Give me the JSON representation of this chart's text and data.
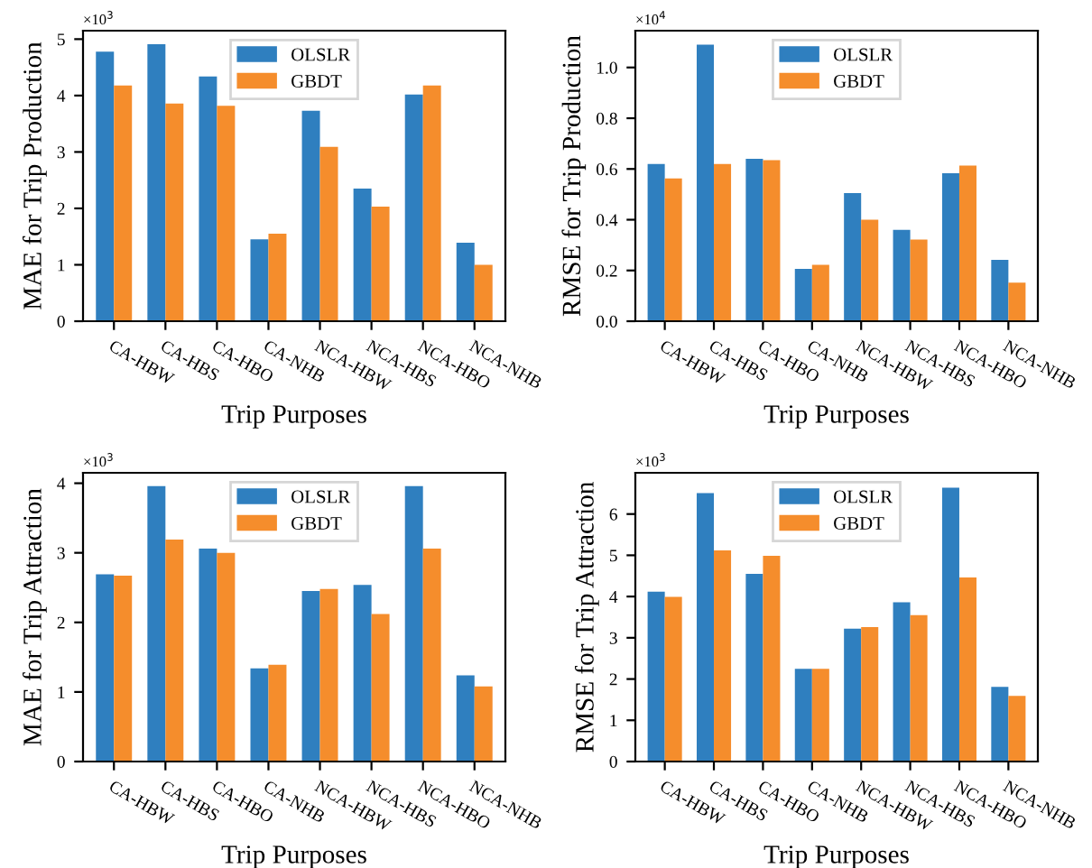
{
  "chart_data": [
    {
      "type": "bar",
      "ylabel": "MAE for Trip Production",
      "xlabel": "Trip Purposes",
      "annotations": [
        "×10$^{3}$"
      ],
      "categories": [
        "CA-HBW",
        "CA-HBS",
        "CA-HBO",
        "CA-NHB",
        "NCA-HBW",
        "NCA-HBS",
        "NCA-HBO",
        "NCA-NHB"
      ],
      "series": [
        {
          "name": "OLSLR",
          "color": "#2f7fbf",
          "values": [
            4.78,
            4.91,
            4.34,
            1.45,
            3.73,
            2.35,
            4.02,
            1.39
          ]
        },
        {
          "name": "GBDT",
          "color": "#f58d2c",
          "values": [
            4.18,
            3.86,
            3.82,
            1.55,
            3.09,
            2.03,
            4.18,
            1.0
          ]
        }
      ],
      "ylim": [
        0,
        5.15
      ],
      "yticks": [
        0,
        1,
        2,
        3,
        4,
        5
      ],
      "legend": "top",
      "grid": false
    },
    {
      "type": "bar",
      "ylabel": "RMSE for Trip Production",
      "xlabel": "Trip Purposes",
      "annotations": [
        "×10$^{4}$"
      ],
      "categories": [
        "CA-HBW",
        "CA-HBS",
        "CA-HBO",
        "CA-NHB",
        "NCA-HBW",
        "NCA-HBS",
        "NCA-HBO",
        "NCA-NHB"
      ],
      "series": [
        {
          "name": "OLSLR",
          "color": "#2f7fbf",
          "values": [
            0.62,
            1.09,
            0.64,
            0.206,
            0.505,
            0.36,
            0.583,
            0.242
          ]
        },
        {
          "name": "GBDT",
          "color": "#f58d2c",
          "values": [
            0.563,
            0.62,
            0.635,
            0.222,
            0.4,
            0.322,
            0.613,
            0.152
          ]
        }
      ],
      "ylim": [
        0,
        1.145
      ],
      "yticks": [
        {
          "value": 0,
          "label": "0.0"
        },
        0.2,
        0.4,
        0.6,
        0.8,
        {
          "value": 1,
          "label": "1.0"
        }
      ],
      "legend": "top",
      "grid": false
    },
    {
      "type": "bar",
      "ylabel": "MAE for Trip Attraction",
      "xlabel": "Trip Purposes",
      "annotations": [
        "×10$^{3}$"
      ],
      "categories": [
        "CA-HBW",
        "CA-HBS",
        "CA-HBO",
        "CA-NHB",
        "NCA-HBW",
        "NCA-HBS",
        "NCA-HBO",
        "NCA-NHB"
      ],
      "series": [
        {
          "name": "OLSLR",
          "color": "#2f7fbf",
          "values": [
            2.69,
            3.96,
            3.06,
            1.34,
            2.45,
            2.54,
            3.96,
            1.24
          ]
        },
        {
          "name": "GBDT",
          "color": "#f58d2c",
          "values": [
            2.67,
            3.19,
            3.0,
            1.39,
            2.48,
            2.12,
            3.06,
            1.08
          ]
        }
      ],
      "ylim": [
        0,
        4.15
      ],
      "yticks": [
        0,
        1,
        2,
        3,
        4
      ],
      "legend": "top",
      "grid": false
    },
    {
      "type": "bar",
      "ylabel": "RMSE for Trip Attraction",
      "xlabel": "Trip Purposes",
      "annotations": [
        "×10$^{3}$"
      ],
      "categories": [
        "CA-HBW",
        "CA-HBS",
        "CA-HBO",
        "CA-NHB",
        "NCA-HBW",
        "NCA-HBS",
        "NCA-HBO",
        "NCA-NHB"
      ],
      "series": [
        {
          "name": "OLSLR",
          "color": "#2f7fbf",
          "values": [
            4.12,
            6.51,
            4.55,
            2.25,
            3.22,
            3.86,
            6.64,
            1.81
          ]
        },
        {
          "name": "GBDT",
          "color": "#f58d2c",
          "values": [
            3.99,
            5.12,
            4.99,
            2.25,
            3.26,
            3.55,
            4.46,
            1.59
          ]
        }
      ],
      "ylim": [
        0,
        7.0
      ],
      "yticks": [
        0,
        1,
        2,
        3,
        4,
        5,
        6
      ],
      "legend": "top",
      "grid": false
    }
  ]
}
